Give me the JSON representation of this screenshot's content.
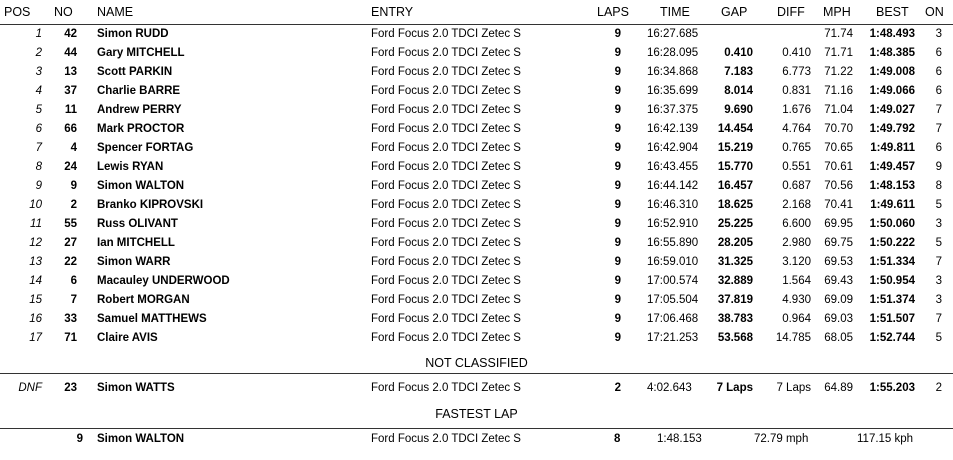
{
  "headers": {
    "pos": "POS",
    "no": "NO",
    "name": "NAME",
    "entry": "ENTRY",
    "laps": "LAPS",
    "time": "TIME",
    "gap": "GAP",
    "diff": "DIFF",
    "mph": "MPH",
    "best": "BEST",
    "on": "ON"
  },
  "results": [
    {
      "pos": "1",
      "no": "42",
      "name": "Simon RUDD",
      "entry": "Ford Focus 2.0 TDCI Zetec S",
      "laps": "9",
      "time": "16:27.685",
      "gap": "",
      "diff": "",
      "mph": "71.74",
      "best": "1:48.493",
      "on": "3"
    },
    {
      "pos": "2",
      "no": "44",
      "name": "Gary MITCHELL",
      "entry": "Ford Focus 2.0 TDCI Zetec S",
      "laps": "9",
      "time": "16:28.095",
      "gap": "0.410",
      "diff": "0.410",
      "mph": "71.71",
      "best": "1:48.385",
      "on": "6"
    },
    {
      "pos": "3",
      "no": "13",
      "name": "Scott PARKIN",
      "entry": "Ford Focus 2.0 TDCI Zetec S",
      "laps": "9",
      "time": "16:34.868",
      "gap": "7.183",
      "diff": "6.773",
      "mph": "71.22",
      "best": "1:49.008",
      "on": "6"
    },
    {
      "pos": "4",
      "no": "37",
      "name": "Charlie BARRE",
      "entry": "Ford Focus 2.0 TDCI Zetec S",
      "laps": "9",
      "time": "16:35.699",
      "gap": "8.014",
      "diff": "0.831",
      "mph": "71.16",
      "best": "1:49.066",
      "on": "6"
    },
    {
      "pos": "5",
      "no": "11",
      "name": "Andrew PERRY",
      "entry": "Ford Focus 2.0 TDCI Zetec S",
      "laps": "9",
      "time": "16:37.375",
      "gap": "9.690",
      "diff": "1.676",
      "mph": "71.04",
      "best": "1:49.027",
      "on": "7"
    },
    {
      "pos": "6",
      "no": "66",
      "name": "Mark PROCTOR",
      "entry": "Ford Focus 2.0 TDCI Zetec S",
      "laps": "9",
      "time": "16:42.139",
      "gap": "14.454",
      "diff": "4.764",
      "mph": "70.70",
      "best": "1:49.792",
      "on": "7"
    },
    {
      "pos": "7",
      "no": "4",
      "name": "Spencer FORTAG",
      "entry": "Ford Focus 2.0 TDCI Zetec S",
      "laps": "9",
      "time": "16:42.904",
      "gap": "15.219",
      "diff": "0.765",
      "mph": "70.65",
      "best": "1:49.811",
      "on": "6"
    },
    {
      "pos": "8",
      "no": "24",
      "name": "Lewis RYAN",
      "entry": "Ford Focus 2.0 TDCI Zetec S",
      "laps": "9",
      "time": "16:43.455",
      "gap": "15.770",
      "diff": "0.551",
      "mph": "70.61",
      "best": "1:49.457",
      "on": "9"
    },
    {
      "pos": "9",
      "no": "9",
      "name": "Simon WALTON",
      "entry": "Ford Focus 2.0 TDCI Zetec S",
      "laps": "9",
      "time": "16:44.142",
      "gap": "16.457",
      "diff": "0.687",
      "mph": "70.56",
      "best": "1:48.153",
      "on": "8"
    },
    {
      "pos": "10",
      "no": "2",
      "name": "Branko KIPROVSKI",
      "entry": "Ford Focus 2.0 TDCI Zetec S",
      "laps": "9",
      "time": "16:46.310",
      "gap": "18.625",
      "diff": "2.168",
      "mph": "70.41",
      "best": "1:49.611",
      "on": "5"
    },
    {
      "pos": "11",
      "no": "55",
      "name": "Russ OLIVANT",
      "entry": "Ford Focus 2.0 TDCI Zetec S",
      "laps": "9",
      "time": "16:52.910",
      "gap": "25.225",
      "diff": "6.600",
      "mph": "69.95",
      "best": "1:50.060",
      "on": "3"
    },
    {
      "pos": "12",
      "no": "27",
      "name": "Ian MITCHELL",
      "entry": "Ford Focus 2.0 TDCI Zetec S",
      "laps": "9",
      "time": "16:55.890",
      "gap": "28.205",
      "diff": "2.980",
      "mph": "69.75",
      "best": "1:50.222",
      "on": "5"
    },
    {
      "pos": "13",
      "no": "22",
      "name": "Simon WARR",
      "entry": "Ford Focus 2.0 TDCI Zetec S",
      "laps": "9",
      "time": "16:59.010",
      "gap": "31.325",
      "diff": "3.120",
      "mph": "69.53",
      "best": "1:51.334",
      "on": "7"
    },
    {
      "pos": "14",
      "no": "6",
      "name": "Macauley UNDERWOOD",
      "entry": "Ford Focus 2.0 TDCI Zetec S",
      "laps": "9",
      "time": "17:00.574",
      "gap": "32.889",
      "diff": "1.564",
      "mph": "69.43",
      "best": "1:50.954",
      "on": "3"
    },
    {
      "pos": "15",
      "no": "7",
      "name": "Robert MORGAN",
      "entry": "Ford Focus 2.0 TDCI Zetec S",
      "laps": "9",
      "time": "17:05.504",
      "gap": "37.819",
      "diff": "4.930",
      "mph": "69.09",
      "best": "1:51.374",
      "on": "3"
    },
    {
      "pos": "16",
      "no": "33",
      "name": "Samuel MATTHEWS",
      "entry": "Ford Focus 2.0 TDCI Zetec S",
      "laps": "9",
      "time": "17:06.468",
      "gap": "38.783",
      "diff": "0.964",
      "mph": "69.03",
      "best": "1:51.507",
      "on": "7"
    },
    {
      "pos": "17",
      "no": "71",
      "name": "Claire AVIS",
      "entry": "Ford Focus 2.0 TDCI Zetec S",
      "laps": "9",
      "time": "17:21.253",
      "gap": "53.568",
      "diff": "14.785",
      "mph": "68.05",
      "best": "1:52.744",
      "on": "5"
    }
  ],
  "not_classified": {
    "title": "NOT CLASSIFIED",
    "rows": [
      {
        "pos": "DNF",
        "no": "23",
        "name": "Simon WATTS",
        "entry": "Ford Focus 2.0 TDCI Zetec S",
        "laps": "2",
        "time": "4:02.643",
        "gap": "7 Laps",
        "diff": "7 Laps",
        "mph": "64.89",
        "best": "1:55.203",
        "on": "2"
      }
    ]
  },
  "fastest_lap": {
    "title": "FASTEST LAP",
    "no": "9",
    "name": "Simon WALTON",
    "entry": "Ford Focus 2.0 TDCI Zetec S",
    "lap": "8",
    "time": "1:48.153",
    "mph": "72.79 mph",
    "kph": "117.15 kph"
  }
}
